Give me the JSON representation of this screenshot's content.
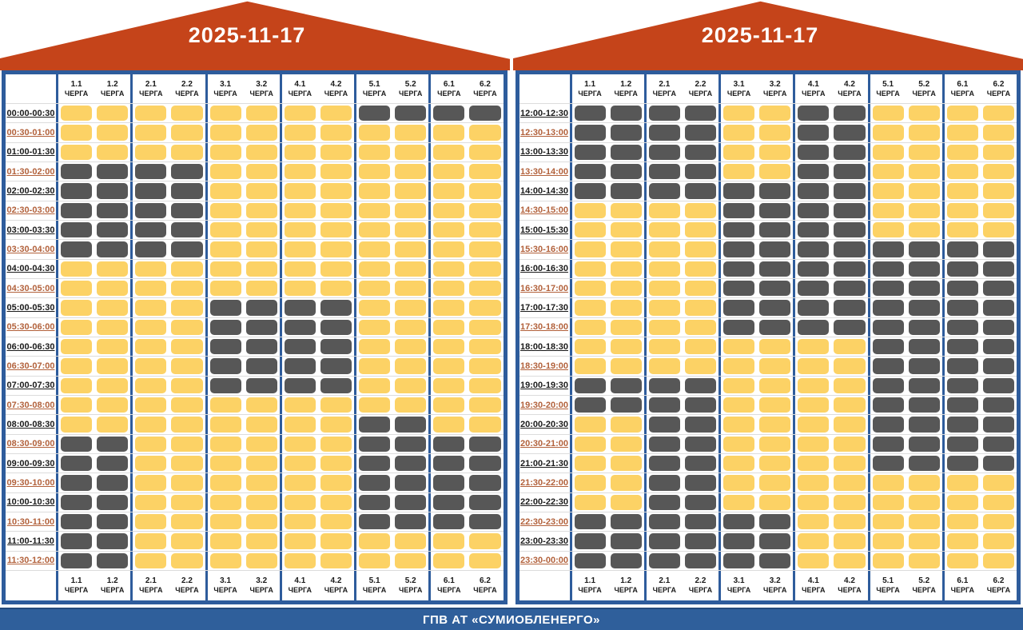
{
  "queue_word": "ЧЕРГА",
  "queue_numbers": [
    "1.1",
    "1.2",
    "2.1",
    "2.2",
    "3.1",
    "3.2",
    "4.1",
    "4.2",
    "5.1",
    "5.2",
    "6.1",
    "6.2"
  ],
  "footer": {
    "label": "ГПВ АТ «СУМИОБЛЕНЕРГО»"
  },
  "colors": {
    "cell_on": "#fcd265",
    "cell_off": "#575757",
    "roof": "#c5441a",
    "panel_border": "#2e5c9c",
    "footer_bar": "#2f5f9b",
    "time_label_dark": "#1a1a1a",
    "time_label_alt": "#b2613b"
  },
  "panels": [
    {
      "side": "left",
      "date": "2025-11-17",
      "rows": [
        {
          "time": "00:00-00:30",
          "cells": "111111110000"
        },
        {
          "time": "00:30-01:00",
          "cells": "111111111111"
        },
        {
          "time": "01:00-01:30",
          "cells": "111111111111"
        },
        {
          "time": "01:30-02:00",
          "cells": "000011111111"
        },
        {
          "time": "02:00-02:30",
          "cells": "000011111111"
        },
        {
          "time": "02:30-03:00",
          "cells": "000011111111"
        },
        {
          "time": "03:00-03:30",
          "cells": "000011111111"
        },
        {
          "time": "03:30-04:00",
          "cells": "000011111111"
        },
        {
          "time": "04:00-04:30",
          "cells": "111111111111"
        },
        {
          "time": "04:30-05:00",
          "cells": "111111111111"
        },
        {
          "time": "05:00-05:30",
          "cells": "111100001111"
        },
        {
          "time": "05:30-06:00",
          "cells": "111100001111"
        },
        {
          "time": "06:00-06:30",
          "cells": "111100001111"
        },
        {
          "time": "06:30-07:00",
          "cells": "111100001111"
        },
        {
          "time": "07:00-07:30",
          "cells": "111100001111"
        },
        {
          "time": "07:30-08:00",
          "cells": "111111111111"
        },
        {
          "time": "08:00-08:30",
          "cells": "111111110011"
        },
        {
          "time": "08:30-09:00",
          "cells": "001111110000"
        },
        {
          "time": "09:00-09:30",
          "cells": "001111110000"
        },
        {
          "time": "09:30-10:00",
          "cells": "001111110000"
        },
        {
          "time": "10:00-10:30",
          "cells": "001111110000"
        },
        {
          "time": "10:30-11:00",
          "cells": "001111110000"
        },
        {
          "time": "11:00-11:30",
          "cells": "001111111111"
        },
        {
          "time": "11:30-12:00",
          "cells": "001111111111"
        }
      ]
    },
    {
      "side": "right",
      "date": "2025-11-17",
      "rows": [
        {
          "time": "12:00-12:30",
          "cells": "000011001111"
        },
        {
          "time": "12:30-13:00",
          "cells": "000011001111"
        },
        {
          "time": "13:00-13:30",
          "cells": "000011001111"
        },
        {
          "time": "13:30-14:00",
          "cells": "000011001111"
        },
        {
          "time": "14:00-14:30",
          "cells": "000000001111"
        },
        {
          "time": "14:30-15:00",
          "cells": "111100001111"
        },
        {
          "time": "15:00-15:30",
          "cells": "111100001111"
        },
        {
          "time": "15:30-16:00",
          "cells": "111100000000"
        },
        {
          "time": "16:00-16:30",
          "cells": "111100000000"
        },
        {
          "time": "16:30-17:00",
          "cells": "111100000000"
        },
        {
          "time": "17:00-17:30",
          "cells": "111100000000"
        },
        {
          "time": "17:30-18:00",
          "cells": "111100000000"
        },
        {
          "time": "18:00-18:30",
          "cells": "111111110000"
        },
        {
          "time": "18:30-19:00",
          "cells": "111111110000"
        },
        {
          "time": "19:00-19:30",
          "cells": "000011110000"
        },
        {
          "time": "19:30-20:00",
          "cells": "000011110000"
        },
        {
          "time": "20:00-20:30",
          "cells": "110011110000"
        },
        {
          "time": "20:30-21:00",
          "cells": "110011110000"
        },
        {
          "time": "21:00-21:30",
          "cells": "110011110000"
        },
        {
          "time": "21:30-22:00",
          "cells": "110011111111"
        },
        {
          "time": "22:00-22:30",
          "cells": "110011111111"
        },
        {
          "time": "22:30-23:00",
          "cells": "000000111111"
        },
        {
          "time": "23:00-23:30",
          "cells": "000000111111"
        },
        {
          "time": "23:30-00:00",
          "cells": "000000111111"
        }
      ]
    }
  ]
}
